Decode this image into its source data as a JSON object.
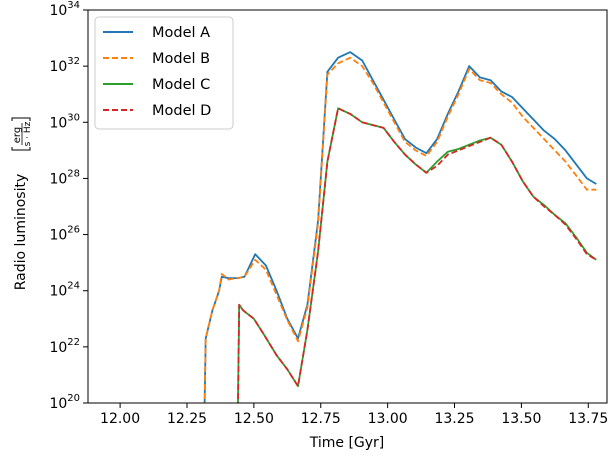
{
  "chart_data": {
    "type": "line",
    "xlabel": "Time [Gyr]",
    "ylabel": "Radio luminosity",
    "ylabel_unit": {
      "numerator": "erg",
      "denominator": "s · Hz"
    },
    "xlim": [
      11.88,
      13.82
    ],
    "ylim_exponent": [
      20,
      34
    ],
    "y_scale": "log",
    "x_ticks": [
      "12.00",
      "12.25",
      "12.50",
      "12.75",
      "13.00",
      "13.25",
      "13.50",
      "13.75"
    ],
    "x_tick_values": [
      12.0,
      12.25,
      12.5,
      12.75,
      13.0,
      13.25,
      13.5,
      13.75
    ],
    "y_tick_exponents": [
      20,
      22,
      24,
      26,
      28,
      30,
      32,
      34
    ],
    "y_tick_base": "10",
    "grid": false,
    "legend_position": "top-left",
    "series": [
      {
        "name": "Model A",
        "color": "#1f77b4",
        "dash": "solid",
        "points": [
          [
            12.315,
            19.5
          ],
          [
            12.32,
            22.3
          ],
          [
            12.345,
            23.3
          ],
          [
            12.37,
            24.0
          ],
          [
            12.38,
            24.5
          ],
          [
            12.405,
            24.45
          ],
          [
            12.44,
            24.45
          ],
          [
            12.465,
            24.5
          ],
          [
            12.505,
            25.3
          ],
          [
            12.545,
            24.9
          ],
          [
            12.585,
            24.0
          ],
          [
            12.625,
            23.0
          ],
          [
            12.665,
            22.3
          ],
          [
            12.7,
            23.5
          ],
          [
            12.74,
            26.5
          ],
          [
            12.775,
            31.8
          ],
          [
            12.815,
            32.3
          ],
          [
            12.86,
            32.5
          ],
          [
            12.905,
            32.2
          ],
          [
            12.945,
            31.5
          ],
          [
            12.985,
            30.8
          ],
          [
            13.025,
            30.1
          ],
          [
            13.065,
            29.4
          ],
          [
            13.105,
            29.1
          ],
          [
            13.145,
            28.9
          ],
          [
            13.185,
            29.4
          ],
          [
            13.225,
            30.3
          ],
          [
            13.265,
            31.1
          ],
          [
            13.305,
            32.0
          ],
          [
            13.345,
            31.6
          ],
          [
            13.385,
            31.5
          ],
          [
            13.425,
            31.1
          ],
          [
            13.465,
            30.9
          ],
          [
            13.505,
            30.5
          ],
          [
            13.545,
            30.1
          ],
          [
            13.585,
            29.7
          ],
          [
            13.625,
            29.4
          ],
          [
            13.665,
            29.0
          ],
          [
            13.705,
            28.5
          ],
          [
            13.745,
            28.0
          ],
          [
            13.78,
            27.8
          ]
        ]
      },
      {
        "name": "Model B",
        "color": "#ff7f0e",
        "dash": "dashed",
        "points": [
          [
            12.315,
            19.5
          ],
          [
            12.32,
            22.3
          ],
          [
            12.345,
            23.3
          ],
          [
            12.37,
            24.0
          ],
          [
            12.38,
            24.6
          ],
          [
            12.405,
            24.4
          ],
          [
            12.44,
            24.45
          ],
          [
            12.465,
            24.5
          ],
          [
            12.505,
            25.1
          ],
          [
            12.545,
            24.75
          ],
          [
            12.585,
            23.85
          ],
          [
            12.625,
            22.95
          ],
          [
            12.665,
            22.2
          ],
          [
            12.7,
            23.4
          ],
          [
            12.74,
            26.4
          ],
          [
            12.775,
            31.7
          ],
          [
            12.815,
            32.1
          ],
          [
            12.86,
            32.3
          ],
          [
            12.905,
            32.0
          ],
          [
            12.945,
            31.4
          ],
          [
            12.985,
            30.7
          ],
          [
            13.025,
            30.0
          ],
          [
            13.065,
            29.3
          ],
          [
            13.105,
            29.0
          ],
          [
            13.145,
            28.8
          ],
          [
            13.185,
            29.3
          ],
          [
            13.225,
            30.2
          ],
          [
            13.265,
            31.0
          ],
          [
            13.305,
            31.9
          ],
          [
            13.345,
            31.5
          ],
          [
            13.385,
            31.4
          ],
          [
            13.425,
            31.0
          ],
          [
            13.465,
            30.7
          ],
          [
            13.505,
            30.2
          ],
          [
            13.545,
            29.8
          ],
          [
            13.585,
            29.4
          ],
          [
            13.625,
            29.0
          ],
          [
            13.665,
            28.6
          ],
          [
            13.705,
            28.1
          ],
          [
            13.745,
            27.6
          ],
          [
            13.78,
            27.6
          ]
        ]
      },
      {
        "name": "Model C",
        "color": "#2ca02c",
        "dash": "solid",
        "points": [
          [
            12.44,
            19.5
          ],
          [
            12.445,
            23.5
          ],
          [
            12.46,
            23.3
          ],
          [
            12.5,
            23.0
          ],
          [
            12.54,
            22.4
          ],
          [
            12.585,
            21.7
          ],
          [
            12.625,
            21.2
          ],
          [
            12.665,
            20.6
          ],
          [
            12.7,
            22.6
          ],
          [
            12.74,
            25.4
          ],
          [
            12.775,
            28.6
          ],
          [
            12.815,
            30.5
          ],
          [
            12.86,
            30.3
          ],
          [
            12.905,
            30.0
          ],
          [
            12.945,
            29.9
          ],
          [
            12.985,
            29.8
          ],
          [
            13.025,
            29.3
          ],
          [
            13.065,
            28.85
          ],
          [
            13.105,
            28.5
          ],
          [
            13.145,
            28.2
          ],
          [
            13.185,
            28.6
          ],
          [
            13.225,
            28.95
          ],
          [
            13.265,
            29.05
          ],
          [
            13.305,
            29.2
          ],
          [
            13.345,
            29.35
          ],
          [
            13.385,
            29.45
          ],
          [
            13.425,
            29.2
          ],
          [
            13.465,
            28.6
          ],
          [
            13.505,
            27.9
          ],
          [
            13.545,
            27.35
          ],
          [
            13.585,
            27.05
          ],
          [
            13.625,
            26.7
          ],
          [
            13.665,
            26.4
          ],
          [
            13.705,
            25.9
          ],
          [
            13.745,
            25.35
          ],
          [
            13.78,
            25.1
          ]
        ]
      },
      {
        "name": "Model D",
        "color": "#d62728",
        "dash": "dashed",
        "points": [
          [
            12.44,
            19.5
          ],
          [
            12.445,
            23.5
          ],
          [
            12.46,
            23.3
          ],
          [
            12.5,
            23.0
          ],
          [
            12.54,
            22.4
          ],
          [
            12.585,
            21.7
          ],
          [
            12.625,
            21.2
          ],
          [
            12.665,
            20.6
          ],
          [
            12.7,
            22.6
          ],
          [
            12.74,
            25.4
          ],
          [
            12.775,
            28.6
          ],
          [
            12.815,
            30.5
          ],
          [
            12.86,
            30.3
          ],
          [
            12.905,
            30.0
          ],
          [
            12.945,
            29.9
          ],
          [
            12.985,
            29.8
          ],
          [
            13.025,
            29.3
          ],
          [
            13.065,
            28.85
          ],
          [
            13.105,
            28.5
          ],
          [
            13.145,
            28.2
          ],
          [
            13.185,
            28.45
          ],
          [
            13.225,
            28.85
          ],
          [
            13.265,
            29.0
          ],
          [
            13.305,
            29.15
          ],
          [
            13.345,
            29.3
          ],
          [
            13.385,
            29.45
          ],
          [
            13.425,
            29.2
          ],
          [
            13.465,
            28.6
          ],
          [
            13.505,
            27.9
          ],
          [
            13.545,
            27.35
          ],
          [
            13.585,
            27.0
          ],
          [
            13.625,
            26.7
          ],
          [
            13.665,
            26.35
          ],
          [
            13.705,
            25.85
          ],
          [
            13.745,
            25.3
          ],
          [
            13.78,
            25.1
          ]
        ]
      }
    ]
  }
}
